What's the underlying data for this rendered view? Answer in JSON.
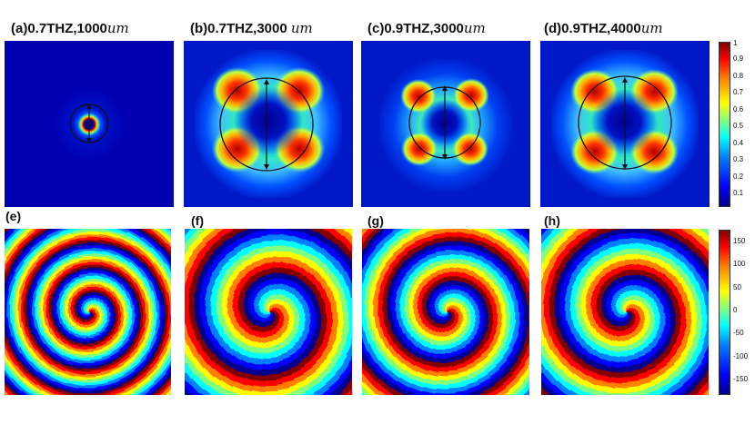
{
  "figure": {
    "top_panels": [
      {
        "id": "a",
        "label": "(a)",
        "title": "0.7THZ,1000",
        "unit": "um"
      },
      {
        "id": "b",
        "label": "(b)",
        "title": "0.7THZ,3000 ",
        "unit": "um"
      },
      {
        "id": "c",
        "label": "(c)",
        "title": "0.9THZ,3000",
        "unit": "um"
      },
      {
        "id": "d",
        "label": "(d)",
        "title": "0.9THZ,4000",
        "unit": "um"
      }
    ],
    "bottom_panels": [
      {
        "id": "e",
        "label": "(e)"
      },
      {
        "id": "f",
        "label": "(f)"
      },
      {
        "id": "g",
        "label": "(g)"
      },
      {
        "id": "h",
        "label": "(h)"
      }
    ],
    "intensity_colorbar": {
      "ticks": [
        "1",
        "0.9",
        "0.8",
        "0.7",
        "0.6",
        "0.5",
        "0.4",
        "0.3",
        "0.2",
        "0.1"
      ]
    },
    "phase_colorbar": {
      "ticks": [
        "150",
        "100",
        "50",
        "0",
        "-50",
        "-100",
        "-150"
      ]
    }
  }
}
